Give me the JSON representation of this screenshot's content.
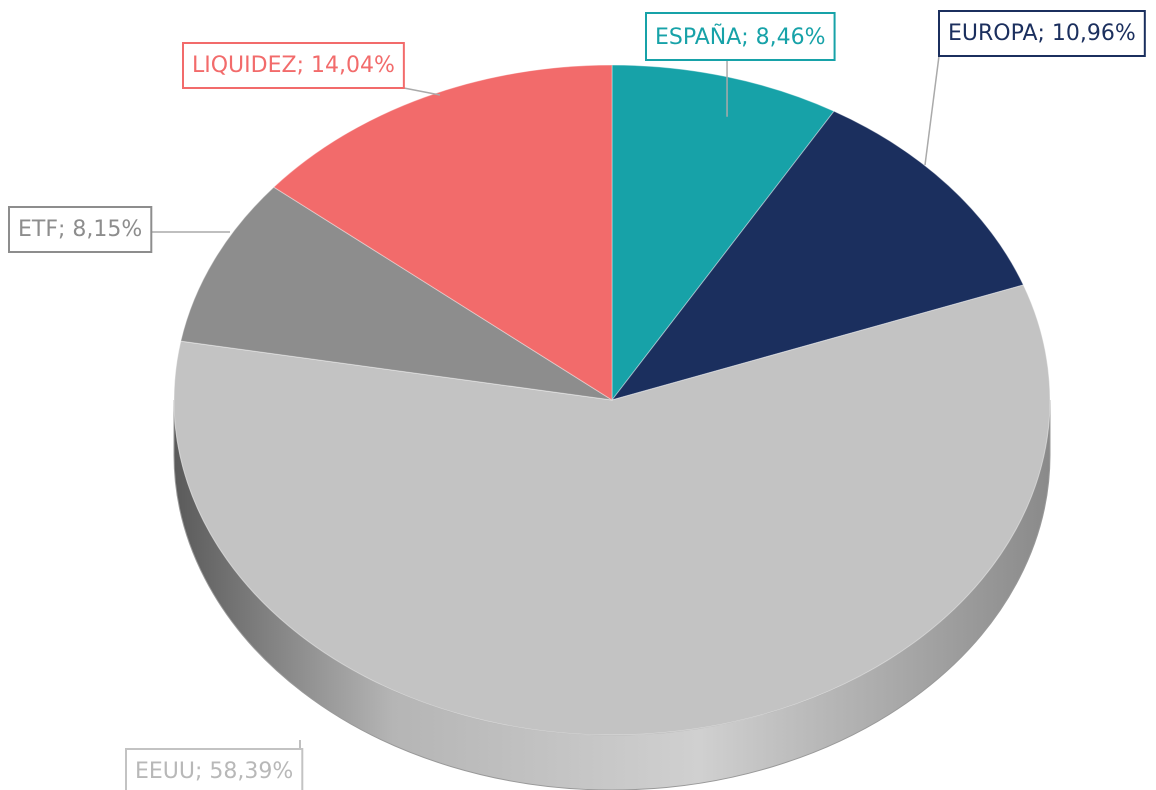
{
  "chart_data": {
    "type": "pie",
    "values": [
      8.46,
      10.96,
      58.39,
      8.15,
      14.04
    ],
    "value_labels": [
      "ESPAÑA; 8,46%",
      "EUROPA; 10,96%",
      "EEUU; 58,39%",
      "ETF; 8,15%",
      "LIQUIDEZ; 14,04%"
    ],
    "colors": [
      "#17a2a8",
      "#1b2f5e",
      "#c3c3c3",
      "#8d8d8d",
      "#f26b6b"
    ]
  }
}
